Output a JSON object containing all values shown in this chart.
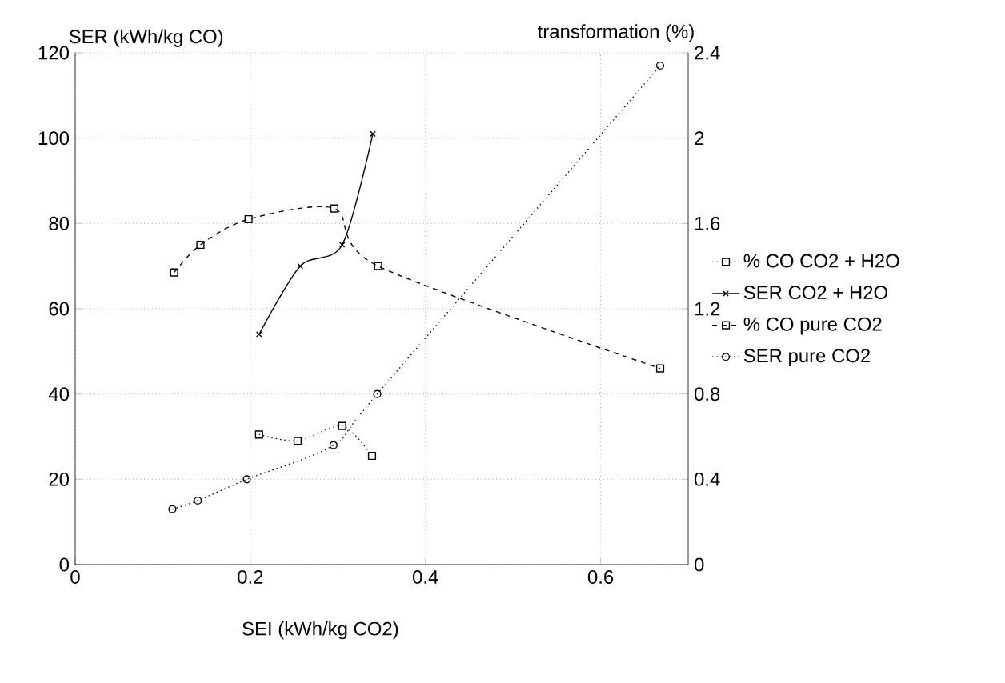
{
  "chart_data": {
    "type": "line",
    "xlabel": "SEI (kWh/kg CO2)",
    "ylabel": "SER (kWh/kg CO)",
    "y2label": "transformation (%)",
    "xlim": [
      0,
      0.7
    ],
    "xticks": [
      0,
      0.2,
      0.4,
      0.6
    ],
    "ylim": [
      0,
      120
    ],
    "yticks": [
      0,
      20,
      40,
      60,
      80,
      100,
      120
    ],
    "y2lim": [
      0,
      2.4
    ],
    "y2ticks": [
      0,
      0.4,
      0.8,
      1.2,
      1.6,
      2,
      2.4
    ],
    "grid": true,
    "legend": "right",
    "series": [
      {
        "name": "% CO CO2 + H2O",
        "color": "#000000",
        "axis": "y2",
        "marker": "square",
        "line_style": "dotted",
        "x": [
          0.21,
          0.254,
          0.305,
          0.339
        ],
        "values": [
          0.61,
          0.58,
          0.65,
          0.51
        ]
      },
      {
        "name": "SER CO2 + H2O",
        "color": "#000000",
        "marker": "cross",
        "line_style": "solid",
        "x": [
          0.21,
          0.257,
          0.305,
          0.34
        ],
        "values": [
          54,
          70,
          75,
          101
        ]
      },
      {
        "name": "% CO pure CO2",
        "color": "#000000",
        "axis": "y2",
        "marker": "square",
        "line_style": "dashed",
        "x": [
          0.113,
          0.143,
          0.198,
          0.296,
          0.346,
          0.668
        ],
        "values": [
          1.37,
          1.5,
          1.62,
          1.67,
          1.4,
          0.92
        ]
      },
      {
        "name": "SER pure CO2",
        "color": "#000000",
        "marker": "circle",
        "line_style": "dotted",
        "x": [
          0.111,
          0.14,
          0.196,
          0.295,
          0.345,
          0.668
        ],
        "values": [
          13,
          15,
          20,
          28,
          40,
          117
        ]
      }
    ]
  }
}
